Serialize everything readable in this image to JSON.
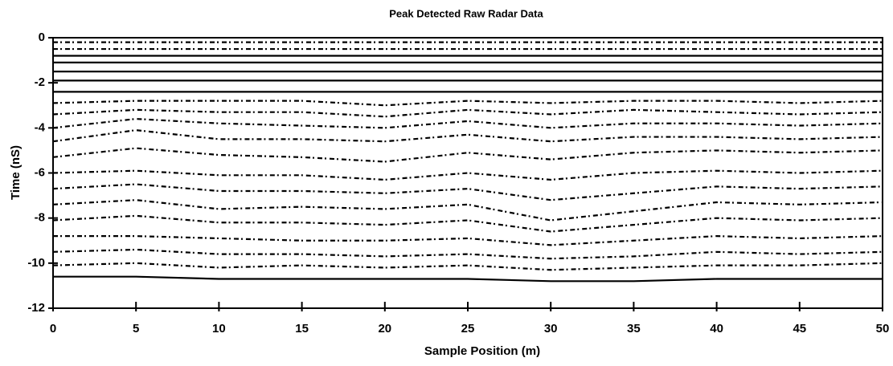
{
  "chart_data": {
    "type": "line",
    "title": "Peak Detected Raw Radar Data",
    "x_label": "Sample Position (m)",
    "y_label": "Time (nS)",
    "xlim": [
      0,
      50
    ],
    "ylim": [
      -12,
      0
    ],
    "xticks": [
      0,
      5,
      10,
      15,
      20,
      25,
      30,
      35,
      40,
      45,
      50
    ],
    "yticks": [
      0,
      -2,
      -4,
      -6,
      -8,
      -10,
      -12
    ],
    "color": "#000000",
    "x": [
      0,
      5,
      10,
      15,
      20,
      25,
      30,
      35,
      40,
      45,
      50
    ],
    "series": [
      {
        "style": "dotted",
        "values": [
          -0.2,
          -0.2,
          -0.2,
          -0.2,
          -0.2,
          -0.2,
          -0.2,
          -0.2,
          -0.2,
          -0.2,
          -0.2
        ]
      },
      {
        "style": "dotted",
        "values": [
          -0.5,
          -0.5,
          -0.5,
          -0.5,
          -0.5,
          -0.5,
          -0.5,
          -0.5,
          -0.5,
          -0.5,
          -0.5
        ]
      },
      {
        "style": "solid",
        "values": [
          -0.8,
          -0.8,
          -0.8,
          -0.8,
          -0.8,
          -0.8,
          -0.8,
          -0.8,
          -0.8,
          -0.8,
          -0.8
        ]
      },
      {
        "style": "solid",
        "values": [
          -1.1,
          -1.1,
          -1.1,
          -1.1,
          -1.1,
          -1.1,
          -1.1,
          -1.1,
          -1.1,
          -1.1,
          -1.1
        ]
      },
      {
        "style": "solid",
        "values": [
          -1.5,
          -1.5,
          -1.5,
          -1.5,
          -1.5,
          -1.5,
          -1.5,
          -1.5,
          -1.5,
          -1.5,
          -1.5
        ]
      },
      {
        "style": "solid",
        "values": [
          -1.9,
          -1.9,
          -1.9,
          -1.9,
          -1.9,
          -1.9,
          -1.9,
          -1.9,
          -1.9,
          -1.9,
          -1.9
        ]
      },
      {
        "style": "solid",
        "values": [
          -2.4,
          -2.4,
          -2.4,
          -2.4,
          -2.4,
          -2.4,
          -2.4,
          -2.4,
          -2.4,
          -2.4,
          -2.4
        ]
      },
      {
        "style": "dotted",
        "values": [
          -2.9,
          -2.8,
          -2.8,
          -2.8,
          -3.0,
          -2.8,
          -2.9,
          -2.8,
          -2.8,
          -2.9,
          -2.8
        ]
      },
      {
        "style": "dotted",
        "values": [
          -3.4,
          -3.2,
          -3.3,
          -3.3,
          -3.5,
          -3.2,
          -3.4,
          -3.2,
          -3.3,
          -3.4,
          -3.3
        ]
      },
      {
        "style": "dotted",
        "values": [
          -4.0,
          -3.6,
          -3.8,
          -3.9,
          -4.0,
          -3.7,
          -4.0,
          -3.8,
          -3.8,
          -3.9,
          -3.8
        ]
      },
      {
        "style": "dotted",
        "values": [
          -4.6,
          -4.1,
          -4.5,
          -4.5,
          -4.6,
          -4.3,
          -4.6,
          -4.4,
          -4.4,
          -4.5,
          -4.4
        ]
      },
      {
        "style": "dotted",
        "values": [
          -5.3,
          -4.9,
          -5.2,
          -5.3,
          -5.5,
          -5.1,
          -5.4,
          -5.1,
          -5.0,
          -5.1,
          -5.0
        ]
      },
      {
        "style": "dotted",
        "values": [
          -6.0,
          -5.9,
          -6.1,
          -6.1,
          -6.3,
          -6.0,
          -6.3,
          -6.0,
          -5.9,
          -6.0,
          -5.9
        ]
      },
      {
        "style": "dotted",
        "values": [
          -6.7,
          -6.5,
          -6.8,
          -6.8,
          -6.9,
          -6.7,
          -7.2,
          -6.9,
          -6.6,
          -6.7,
          -6.6
        ]
      },
      {
        "style": "dotted",
        "values": [
          -7.4,
          -7.2,
          -7.6,
          -7.5,
          -7.6,
          -7.4,
          -8.1,
          -7.7,
          -7.3,
          -7.4,
          -7.3
        ]
      },
      {
        "style": "dotted",
        "values": [
          -8.1,
          -7.9,
          -8.2,
          -8.2,
          -8.3,
          -8.1,
          -8.6,
          -8.3,
          -8.0,
          -8.1,
          -8.0
        ]
      },
      {
        "style": "dotted",
        "values": [
          -8.8,
          -8.8,
          -8.9,
          -9.0,
          -9.0,
          -8.9,
          -9.2,
          -9.0,
          -8.8,
          -8.9,
          -8.8
        ]
      },
      {
        "style": "dotted",
        "values": [
          -9.5,
          -9.4,
          -9.6,
          -9.6,
          -9.7,
          -9.6,
          -9.8,
          -9.7,
          -9.5,
          -9.6,
          -9.5
        ]
      },
      {
        "style": "dotted",
        "values": [
          -10.1,
          -10.0,
          -10.2,
          -10.1,
          -10.2,
          -10.1,
          -10.3,
          -10.2,
          -10.1,
          -10.1,
          -10.0
        ]
      },
      {
        "style": "solid",
        "values": [
          -10.6,
          -10.6,
          -10.7,
          -10.7,
          -10.7,
          -10.7,
          -10.8,
          -10.8,
          -10.7,
          -10.7,
          -10.7
        ]
      }
    ]
  }
}
